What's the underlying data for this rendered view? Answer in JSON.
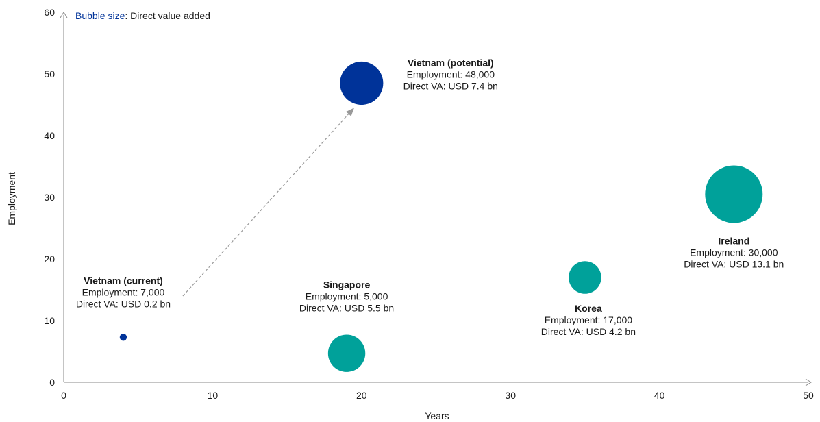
{
  "chart_data": {
    "type": "bubble",
    "xlabel": "Years",
    "ylabel": "Employment",
    "xlim": [
      0,
      50
    ],
    "ylim": [
      0,
      60
    ],
    "xticks": [
      "0",
      "10",
      "20",
      "30",
      "40",
      "50"
    ],
    "yticks": [
      "0",
      "10",
      "20",
      "30",
      "40",
      "50",
      "60"
    ],
    "grid": false,
    "size_note": {
      "key": "Bubble size",
      "text": ": Direct value  added"
    },
    "size_measure": "Direct VA (USD bn)",
    "points": [
      {
        "x": 4,
        "y": 7.3,
        "size": 0.2,
        "color": "#003399",
        "label": [
          "Vietnam (current)",
          "Employment: 7,000",
          "Direct VA:  USD 0.2 bn"
        ]
      },
      {
        "x": 19,
        "y": 4.7,
        "size": 5.5,
        "color": "#00A19A",
        "label": [
          "Singapore",
          "Employment: 5,000",
          "Direct VA:  USD 5.5 bn"
        ]
      },
      {
        "x": 20,
        "y": 48.5,
        "size": 7.4,
        "color": "#003399",
        "label": [
          "Vietnam (potential)",
          "Employment: 48,000",
          "Direct VA:  USD 7.4 bn"
        ]
      },
      {
        "x": 35,
        "y": 17,
        "size": 4.2,
        "color": "#00A19A",
        "label": [
          "Korea",
          "Employment: 17,000",
          "Direct VA:  USD 4.2 bn"
        ]
      },
      {
        "x": 45,
        "y": 30.5,
        "size": 13.1,
        "color": "#00A19A",
        "label": [
          "Ireland",
          "Employment: 30,000",
          "Direct VA:  USD 13.1 bn"
        ]
      }
    ],
    "arrow": {
      "from": [
        8,
        14
      ],
      "to": [
        19.5,
        44.5
      ],
      "style": "dashed"
    },
    "colors": {
      "blue": "#003399",
      "teal": "#00A19A",
      "axis": "#888888"
    }
  }
}
